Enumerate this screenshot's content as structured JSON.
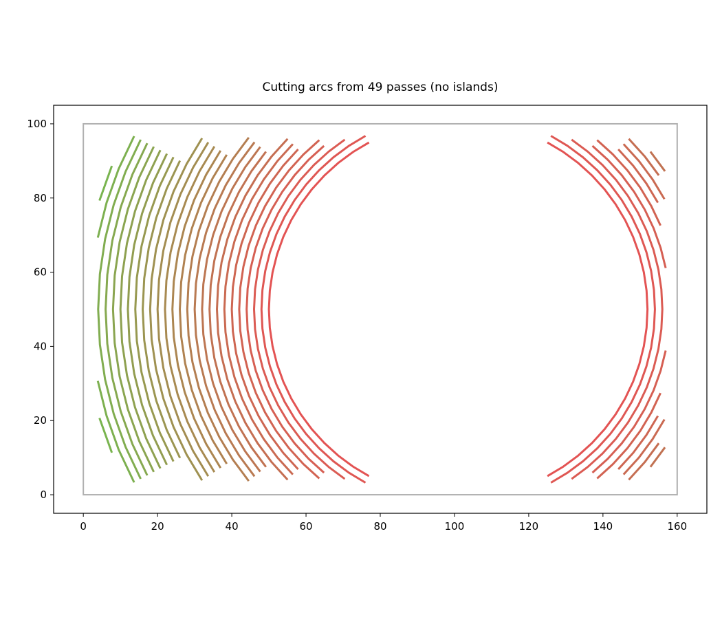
{
  "chart_data": {
    "type": "arcs",
    "title": "Cutting arcs from 49 passes (no islands)",
    "center": [
      101,
      50
    ],
    "radii": [
      51,
      53,
      55,
      57,
      59,
      61,
      63,
      65,
      67,
      69,
      71,
      73,
      75,
      77,
      79,
      81,
      83,
      85,
      87,
      89,
      91,
      93,
      95,
      97,
      99,
      101,
      103,
      105,
      107
    ],
    "inner_color": "#e35353",
    "outer_color": "#6cc04f",
    "cut_region": {
      "x": [
        3,
        157
      ],
      "y": [
        3,
        97
      ]
    },
    "boundary": {
      "x": [
        0,
        160
      ],
      "y": [
        0,
        100
      ],
      "color": "#b0b0b0"
    },
    "xlim": [
      -8,
      168
    ],
    "ylim": [
      -5,
      105
    ],
    "xticks": [
      0,
      20,
      40,
      60,
      80,
      100,
      120,
      140,
      160
    ],
    "yticks": [
      0,
      20,
      40,
      60,
      80,
      100
    ]
  }
}
